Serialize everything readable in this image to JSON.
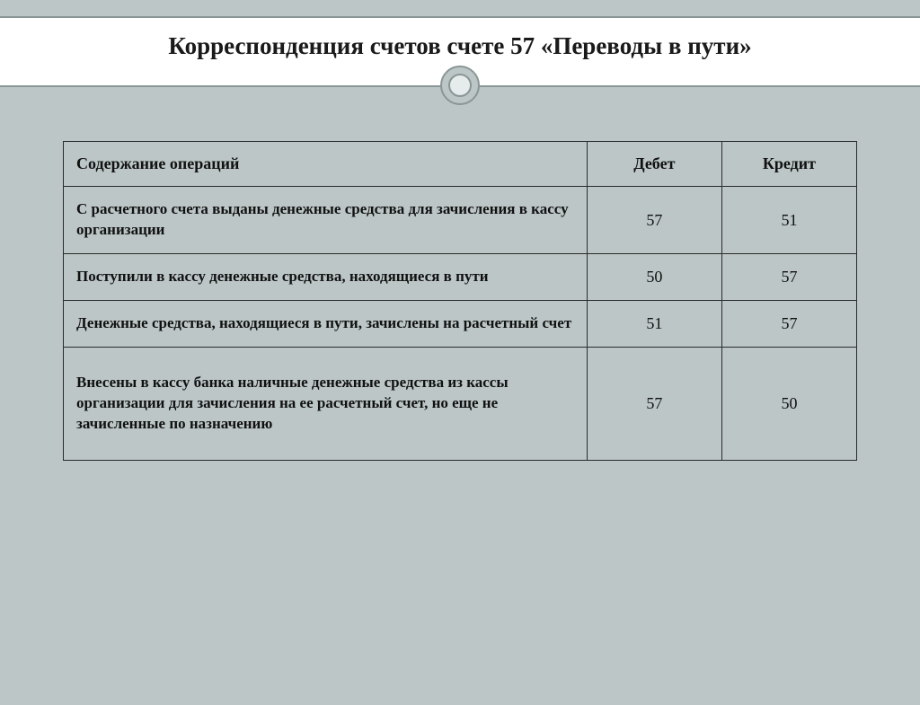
{
  "title": "Корреспонденция счетов счете 57 «Переводы в пути»",
  "table": {
    "columns": [
      "Содержание операций",
      "Дебет",
      "Кредит"
    ],
    "rows": [
      {
        "desc": "С расчетного счета выданы денежные средства для зачисления в кассу организации",
        "debit": "57",
        "credit": "51"
      },
      {
        "desc": "Поступили в кассу денежные средства, находящиеся в пути",
        "debit": "50",
        "credit": "57"
      },
      {
        "desc": "Денежные средства, находящиеся в пути, зачислены на расчетный счет",
        "debit": "51",
        "credit": "57"
      },
      {
        "desc": "Внесены в кассу банка наличные денежные средства из кассы организации для зачисления на ее расчетный счет, но еще не зачисленные по назначению",
        "debit": "57",
        "credit": "50"
      }
    ]
  },
  "style": {
    "background_color": "#bcc6c6",
    "header_band_bg": "#ffffff",
    "rule_color": "#8a9696",
    "border_color": "#2b2b2b",
    "title_fontsize": 27,
    "cell_fontsize": 17,
    "font_family": "Georgia"
  }
}
